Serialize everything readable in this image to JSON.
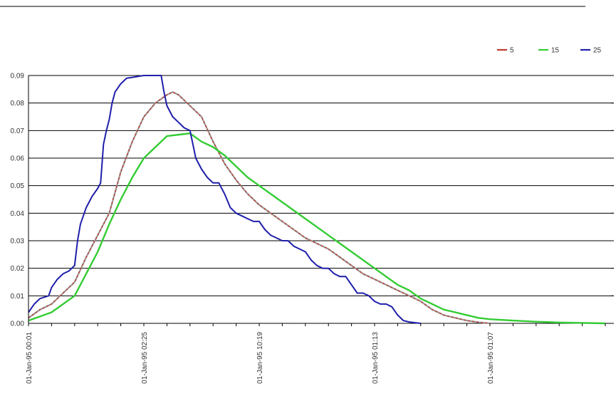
{
  "chart_data": {
    "type": "line",
    "title": "",
    "xlabel": "",
    "ylabel": "",
    "ylim": [
      0,
      0.09
    ],
    "yticks": [
      "0.00",
      "0.01",
      "0.02",
      "0.03",
      "0.04",
      "0.05",
      "0.06",
      "0.07",
      "0.08",
      "0.09"
    ],
    "x_tick_labels": [
      "01-Jan-95 00:01",
      "01-Jan-95 02:25",
      "01-Jan-95 10:19",
      "01-Jan-95 01:13",
      "01-Jan-95 01:07"
    ],
    "grid": true,
    "legend_position": "top-right",
    "series": [
      {
        "name": "5",
        "color": "#c0392b",
        "points": [
          [
            0,
            0.002
          ],
          [
            4,
            0.005
          ],
          [
            8,
            0.007
          ],
          [
            12,
            0.011
          ],
          [
            16,
            0.015
          ],
          [
            20,
            0.024
          ],
          [
            24,
            0.032
          ],
          [
            28,
            0.04
          ],
          [
            32,
            0.055
          ],
          [
            36,
            0.066
          ],
          [
            40,
            0.075
          ],
          [
            44,
            0.08
          ],
          [
            48,
            0.083
          ],
          [
            50,
            0.084
          ],
          [
            52,
            0.083
          ],
          [
            56,
            0.079
          ],
          [
            60,
            0.075
          ],
          [
            64,
            0.066
          ],
          [
            68,
            0.058
          ],
          [
            72,
            0.052
          ],
          [
            76,
            0.047
          ],
          [
            80,
            0.043
          ],
          [
            84,
            0.04
          ],
          [
            88,
            0.037
          ],
          [
            92,
            0.034
          ],
          [
            96,
            0.031
          ],
          [
            100,
            0.029
          ],
          [
            104,
            0.027
          ],
          [
            108,
            0.024
          ],
          [
            112,
            0.021
          ],
          [
            116,
            0.018
          ],
          [
            120,
            0.016
          ],
          [
            124,
            0.014
          ],
          [
            128,
            0.012
          ],
          [
            132,
            0.01
          ],
          [
            136,
            0.008
          ],
          [
            140,
            0.005
          ],
          [
            144,
            0.003
          ],
          [
            148,
            0.002
          ],
          [
            152,
            0.001
          ],
          [
            156,
            0.0004
          ],
          [
            160,
            0.0
          ]
        ]
      },
      {
        "name": "15",
        "color": "#33cc33",
        "points": [
          [
            0,
            0.001
          ],
          [
            8,
            0.004
          ],
          [
            16,
            0.01
          ],
          [
            24,
            0.026
          ],
          [
            28,
            0.036
          ],
          [
            32,
            0.045
          ],
          [
            36,
            0.053
          ],
          [
            40,
            0.06
          ],
          [
            44,
            0.064
          ],
          [
            48,
            0.068
          ],
          [
            56,
            0.069
          ],
          [
            60,
            0.066
          ],
          [
            64,
            0.064
          ],
          [
            68,
            0.061
          ],
          [
            72,
            0.057
          ],
          [
            76,
            0.053
          ],
          [
            80,
            0.05
          ],
          [
            84,
            0.047
          ],
          [
            88,
            0.044
          ],
          [
            92,
            0.041
          ],
          [
            96,
            0.038
          ],
          [
            100,
            0.035
          ],
          [
            104,
            0.032
          ],
          [
            108,
            0.029
          ],
          [
            112,
            0.026
          ],
          [
            116,
            0.023
          ],
          [
            120,
            0.02
          ],
          [
            124,
            0.017
          ],
          [
            128,
            0.014
          ],
          [
            132,
            0.012
          ],
          [
            136,
            0.009
          ],
          [
            140,
            0.007
          ],
          [
            144,
            0.005
          ],
          [
            148,
            0.004
          ],
          [
            152,
            0.003
          ],
          [
            156,
            0.002
          ],
          [
            160,
            0.0015
          ],
          [
            168,
            0.001
          ],
          [
            176,
            0.0006
          ],
          [
            184,
            0.0003
          ],
          [
            200,
            0.0
          ]
        ]
      },
      {
        "name": "25",
        "color": "#1f1faa",
        "points": [
          [
            0,
            0.004
          ],
          [
            2,
            0.007
          ],
          [
            4,
            0.009
          ],
          [
            7,
            0.01
          ],
          [
            8,
            0.013
          ],
          [
            10,
            0.016
          ],
          [
            12,
            0.018
          ],
          [
            14,
            0.019
          ],
          [
            16,
            0.021
          ],
          [
            17,
            0.03
          ],
          [
            18,
            0.036
          ],
          [
            20,
            0.042
          ],
          [
            22,
            0.046
          ],
          [
            24,
            0.049
          ],
          [
            25,
            0.051
          ],
          [
            26,
            0.065
          ],
          [
            27,
            0.07
          ],
          [
            28,
            0.074
          ],
          [
            29,
            0.08
          ],
          [
            30,
            0.084
          ],
          [
            32,
            0.087
          ],
          [
            34,
            0.089
          ],
          [
            40,
            0.09
          ],
          [
            44,
            0.09
          ],
          [
            46,
            0.09
          ],
          [
            47,
            0.084
          ],
          [
            48,
            0.079
          ],
          [
            50,
            0.075
          ],
          [
            52,
            0.073
          ],
          [
            54,
            0.071
          ],
          [
            56,
            0.07
          ],
          [
            57,
            0.065
          ],
          [
            58,
            0.06
          ],
          [
            60,
            0.056
          ],
          [
            62,
            0.053
          ],
          [
            64,
            0.051
          ],
          [
            66,
            0.051
          ],
          [
            68,
            0.047
          ],
          [
            70,
            0.042
          ],
          [
            72,
            0.04
          ],
          [
            74,
            0.039
          ],
          [
            76,
            0.038
          ],
          [
            78,
            0.037
          ],
          [
            80,
            0.037
          ],
          [
            82,
            0.034
          ],
          [
            84,
            0.032
          ],
          [
            86,
            0.031
          ],
          [
            88,
            0.03
          ],
          [
            90,
            0.03
          ],
          [
            92,
            0.028
          ],
          [
            94,
            0.027
          ],
          [
            96,
            0.026
          ],
          [
            98,
            0.023
          ],
          [
            100,
            0.021
          ],
          [
            102,
            0.02
          ],
          [
            104,
            0.02
          ],
          [
            106,
            0.018
          ],
          [
            108,
            0.017
          ],
          [
            110,
            0.017
          ],
          [
            112,
            0.014
          ],
          [
            114,
            0.011
          ],
          [
            116,
            0.011
          ],
          [
            118,
            0.01
          ],
          [
            120,
            0.008
          ],
          [
            122,
            0.007
          ],
          [
            124,
            0.007
          ],
          [
            126,
            0.006
          ],
          [
            128,
            0.003
          ],
          [
            130,
            0.001
          ],
          [
            132,
            0.0005
          ],
          [
            136,
            0.0
          ]
        ]
      }
    ]
  }
}
